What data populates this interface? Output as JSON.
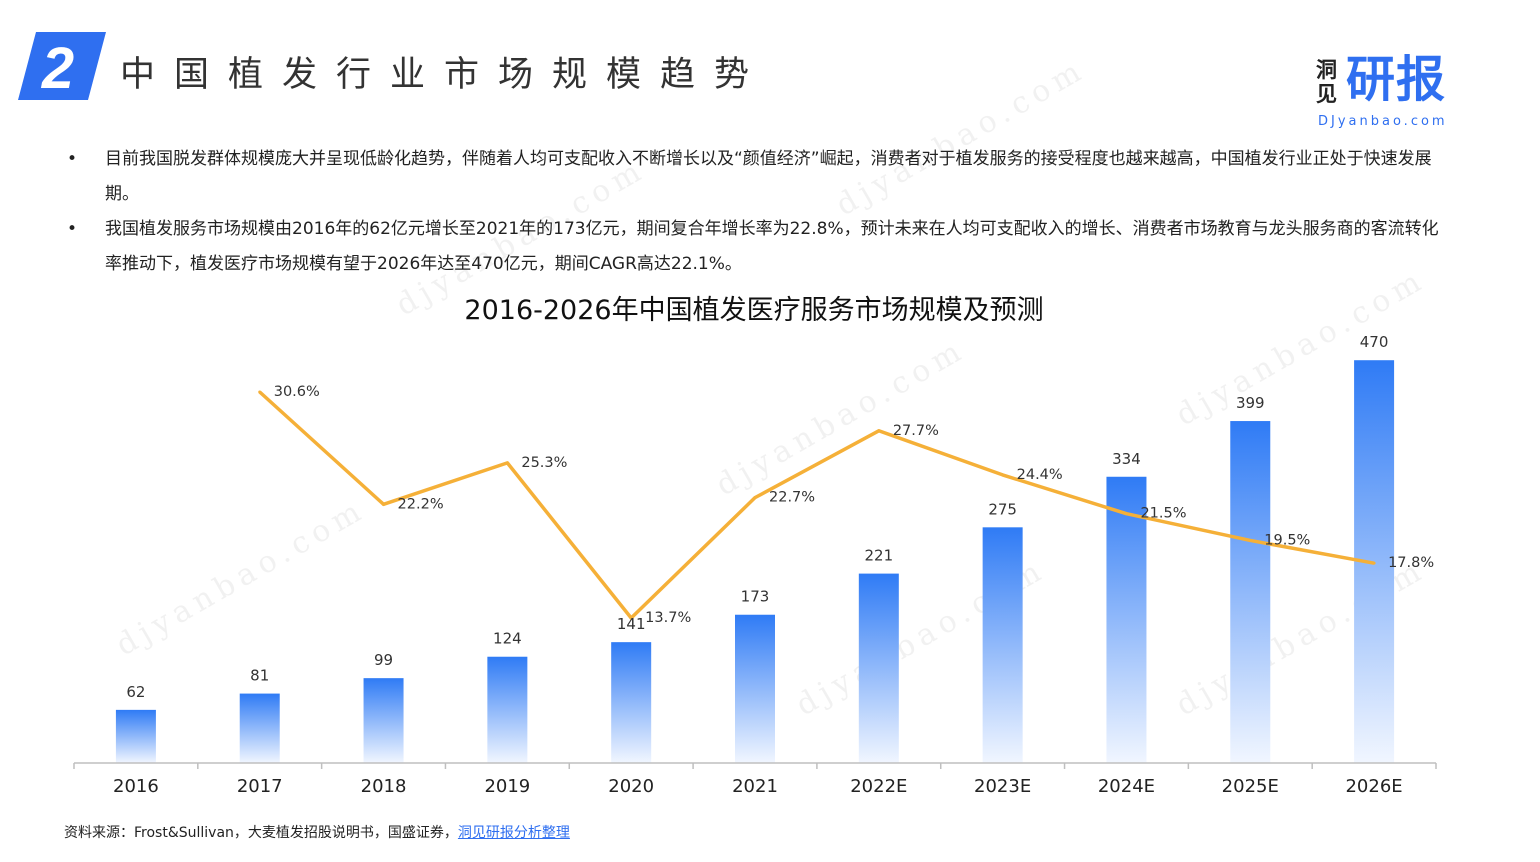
{
  "header": {
    "section_number": "2",
    "title": "中国植发行业市场规模趋势",
    "brand_small": "洞见",
    "brand_big": "研报",
    "brand_url": "DJyanbao.com"
  },
  "bullets": [
    "目前我国脱发群体规模庞大并呈现低龄化趋势，伴随着人均可支配收入不断增长以及“颜值经济”崛起，消费者对于植发服务的接受程度也越来越高，中国植发行业正处于快速发展期。",
    "我国植发服务市场规模由2016年的62亿元增长至2021年的173亿元，期间复合年增长率为22.8%，预计未来在人均可支配收入的增长、消费者市场教育与龙头服务商的客流转化率推动下，植发医疗市场规模有望于2026年达至470亿元，期间CAGR高达22.1%。"
  ],
  "watermark": "djyanbao.com",
  "chart_data": {
    "type": "bar",
    "title": "2016-2026年中国植发医疗服务市场规模及预测",
    "categories": [
      "2016",
      "2017",
      "2018",
      "2019",
      "2020",
      "2021",
      "2022E",
      "2023E",
      "2024E",
      "2025E",
      "2026E"
    ],
    "series": [
      {
        "type": "bar",
        "values": [
          62,
          81,
          99,
          124,
          141,
          173,
          221,
          275,
          334,
          399,
          470
        ]
      },
      {
        "type": "line",
        "values": [
          null,
          30.6,
          22.2,
          25.3,
          13.7,
          22.7,
          27.7,
          24.4,
          21.5,
          19.5,
          17.8
        ],
        "labels": [
          null,
          "30.6%",
          "22.2%",
          "25.3%",
          "13.7%",
          "22.7%",
          "27.7%",
          "24.4%",
          "21.5%",
          "19.5%",
          "17.8%"
        ]
      }
    ],
    "ylim": [
      0,
      500
    ],
    "y2lim": [
      0,
      40
    ],
    "grid": false,
    "bar_color_top": "#2f7bf5",
    "bar_color_bottom": "#f1f6ff",
    "line_color": "#f5b038"
  },
  "footer": {
    "source_prefix": "资料来源：Frost&Sullivan，大麦植发招股说明书，国盛证券，",
    "source_link": "洞见研报分析整理"
  }
}
